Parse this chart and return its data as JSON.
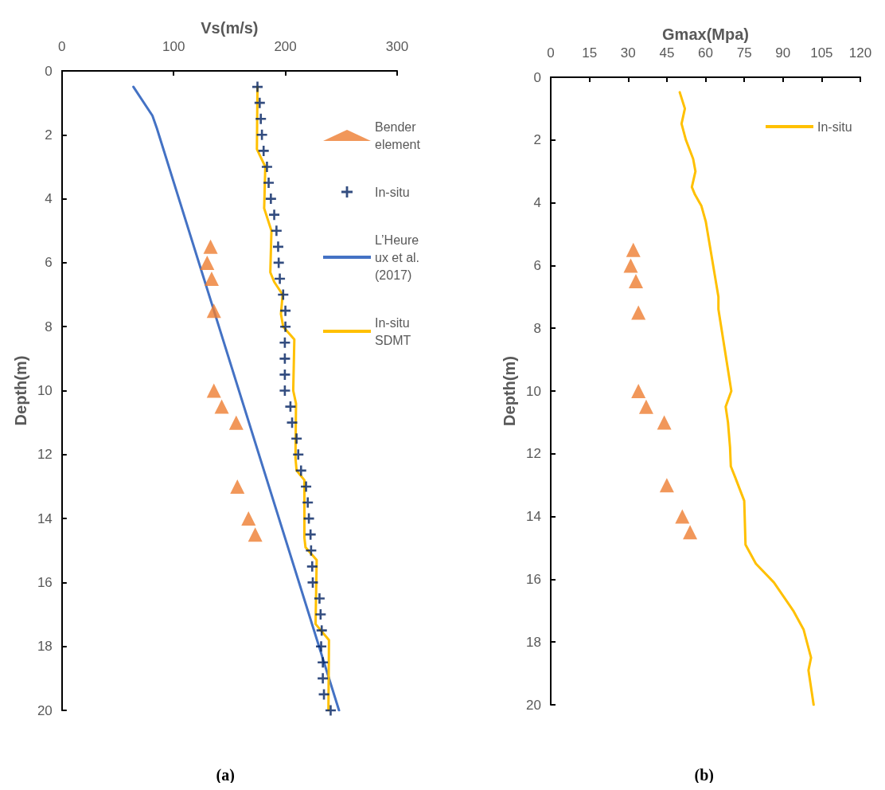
{
  "chart_data": [
    {
      "type": "scatter",
      "xlabel": "Vs(m/s)",
      "ylabel": "Depth(m)",
      "xlim": [
        0,
        300
      ],
      "xticks": [
        0,
        100,
        200,
        300
      ],
      "ylim": [
        20,
        0
      ],
      "yticks": [
        0,
        2,
        4,
        6,
        8,
        10,
        12,
        14,
        16,
        18,
        20
      ],
      "legend": "top right",
      "line_style": "solid",
      "annotations": [
        "(a)"
      ],
      "series": [
        {
          "name": "Bender element",
          "marker": "triangle",
          "color": "#ed7d31",
          "x": [
            133,
            130,
            134,
            136,
            136,
            143,
            156,
            157,
            167,
            173
          ],
          "values": [
            5.5,
            6,
            6.5,
            7.5,
            10,
            10.5,
            11,
            13,
            14,
            14.5
          ]
        },
        {
          "name": "In-situ",
          "marker": "cross",
          "color": "#002060",
          "x": [
            175,
            177,
            178,
            179,
            180.5,
            183.5,
            185,
            187,
            190,
            192,
            193.5,
            194,
            195,
            198,
            200,
            200,
            199.5,
            199.5,
            199.5,
            199.5,
            204.5,
            206,
            210,
            211.5,
            214,
            218.5,
            220,
            221,
            222.5,
            223,
            224,
            224.5,
            230.5,
            231.5,
            232.5,
            232,
            233.5,
            233.5,
            234.5,
            240.5
          ],
          "values": [
            0.5,
            1,
            1.5,
            2,
            2.5,
            3,
            3.5,
            4,
            4.5,
            5,
            5.5,
            6,
            6.5,
            7,
            7.5,
            8,
            8.5,
            9,
            9.5,
            10,
            10.5,
            11,
            11.5,
            12,
            12.5,
            13,
            13.5,
            14,
            14.5,
            15,
            15.5,
            16,
            16.5,
            17,
            17.5,
            18,
            18.5,
            19,
            19.5,
            20
          ]
        },
        {
          "name": "L’Heureux et al. (2017)",
          "type": "line",
          "marker": "none",
          "color": "#4472c4",
          "x": [
            64,
            81,
            85,
            248
          ],
          "values": [
            0.5,
            1.4,
            1.8,
            20
          ]
        },
        {
          "name": "In-situ SDMT",
          "type": "line",
          "marker": "none",
          "color": "#ffc000",
          "x": [
            175,
            174.5,
            182,
            181,
            187.5,
            186.5,
            190,
            197.5,
            196,
            198,
            208,
            207,
            209.5,
            209,
            210,
            217,
            217,
            218,
            228,
            227,
            239,
            238.5
          ],
          "values": [
            0.5,
            2.45,
            3,
            4.3,
            5,
            6.3,
            6.6,
            7,
            7.6,
            8,
            8.4,
            10,
            10.4,
            12.1,
            12.5,
            12.8,
            14.6,
            14.9,
            15.3,
            17.3,
            17.8,
            20
          ]
        }
      ]
    },
    {
      "type": "scatter",
      "xlabel": "Gmax(Mpa)",
      "ylabel": "Depth(m)",
      "xlim": [
        0,
        120
      ],
      "xticks": [
        0,
        15,
        30,
        45,
        60,
        75,
        90,
        105,
        120
      ],
      "ylim": [
        20,
        0
      ],
      "yticks": [
        0,
        2,
        4,
        6,
        8,
        10,
        12,
        14,
        16,
        18,
        20
      ],
      "legend": "top right",
      "line_style": "solid",
      "annotations": [
        "(b)"
      ],
      "series": [
        {
          "marker": "triangle",
          "color": "#ed7d31",
          "x": [
            32,
            31,
            33,
            34,
            34,
            37,
            44,
            45,
            51,
            54
          ],
          "values": [
            5.5,
            6,
            6.5,
            7.5,
            10,
            10.5,
            11,
            13,
            14,
            14.5
          ]
        },
        {
          "name": "In-situ",
          "type": "line",
          "marker": "none",
          "color": "#ffc000",
          "x": [
            50,
            52,
            50.7,
            52.4,
            55.2,
            56.1,
            54.7,
            55.9,
            58.4,
            60.1,
            65,
            65,
            70,
            67.8,
            68.7,
            69.5,
            69.8,
            71.5,
            75,
            75.5,
            79.5,
            86.5,
            94,
            98,
            100.9,
            99.9,
            101.9
          ],
          "values": [
            0.48,
            1,
            1.48,
            2,
            2.6,
            3,
            3.5,
            3.74,
            4.1,
            4.6,
            7,
            7.4,
            10,
            10.5,
            11,
            11.8,
            12.4,
            12.75,
            13.5,
            14.9,
            15.5,
            16.1,
            17,
            17.6,
            18.5,
            18.9,
            20
          ]
        }
      ]
    }
  ]
}
